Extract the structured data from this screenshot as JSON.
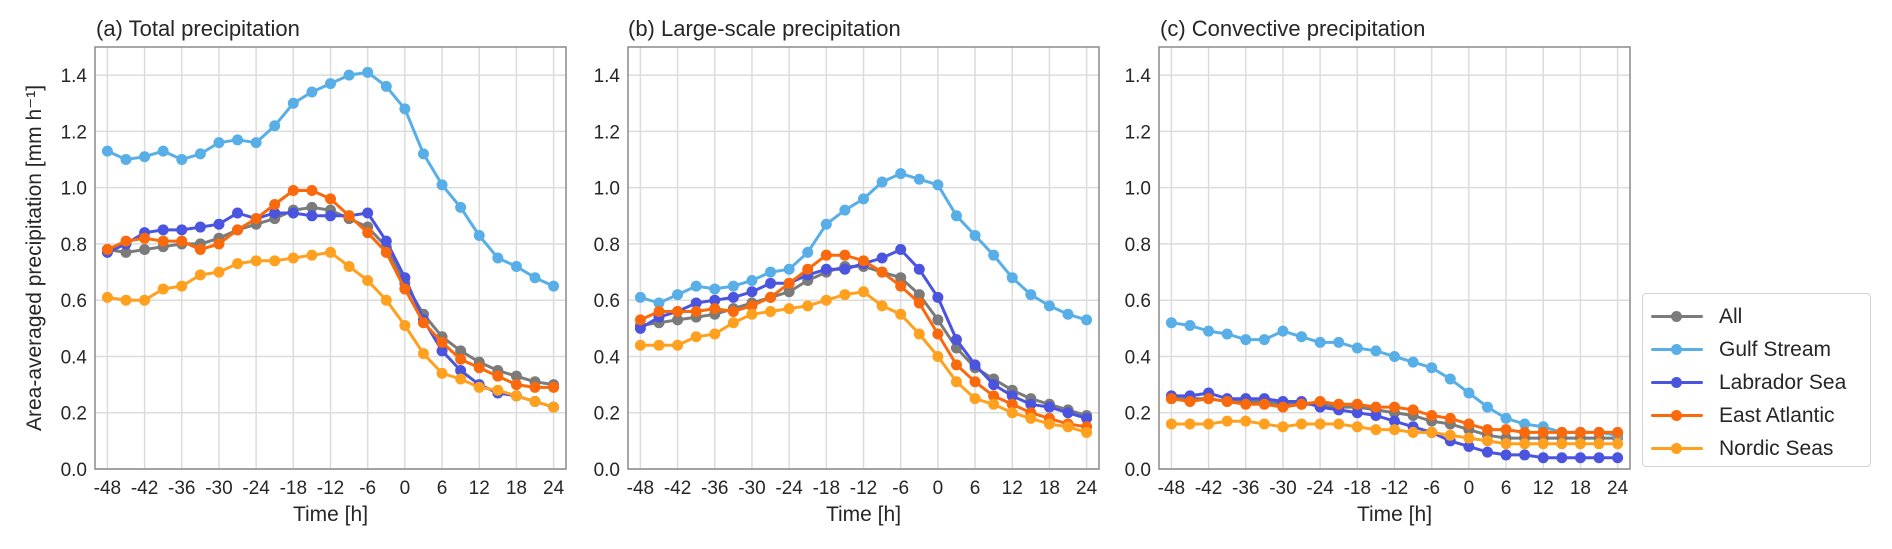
{
  "chart_data": [
    {
      "type": "line",
      "title": "(a) Total precipitation",
      "xlabel": "Time [h]",
      "ylabel": "Area-averaged precipitation [mm h⁻¹]",
      "xlim": [
        -50,
        26
      ],
      "ylim": [
        0,
        1.5
      ],
      "xticks": [
        -48,
        -42,
        -36,
        -30,
        -24,
        -18,
        -12,
        -6,
        0,
        6,
        12,
        18,
        24
      ],
      "xtick_labels": [
        "-48",
        "-42",
        "-36",
        "-30",
        "-24",
        "-18",
        "-12",
        "-6",
        "0",
        "6",
        "12",
        "18",
        "24"
      ],
      "yticks": [
        0.0,
        0.2,
        0.4,
        0.6,
        0.8,
        1.0,
        1.2,
        1.4
      ],
      "ytick_labels": [
        "0.0",
        "0.2",
        "0.4",
        "0.6",
        "0.8",
        "1.0",
        "1.2",
        "1.4"
      ],
      "grid": true,
      "x": [
        -48,
        -45,
        -42,
        -39,
        -36,
        -33,
        -30,
        -27,
        -24,
        -21,
        -18,
        -15,
        -12,
        -9,
        -6,
        -3,
        0,
        3,
        6,
        9,
        12,
        15,
        18,
        21,
        24
      ],
      "series": [
        {
          "name": "All",
          "values": [
            0.78,
            0.77,
            0.78,
            0.79,
            0.8,
            0.8,
            0.82,
            0.85,
            0.87,
            0.89,
            0.92,
            0.93,
            0.92,
            0.89,
            0.86,
            0.79,
            0.66,
            0.55,
            0.47,
            0.42,
            0.38,
            0.35,
            0.33,
            0.31,
            0.3
          ]
        },
        {
          "name": "Gulf Stream",
          "values": [
            1.13,
            1.1,
            1.11,
            1.13,
            1.1,
            1.12,
            1.16,
            1.17,
            1.16,
            1.22,
            1.3,
            1.34,
            1.37,
            1.4,
            1.41,
            1.36,
            1.28,
            1.12,
            1.01,
            0.93,
            0.83,
            0.75,
            0.72,
            0.68,
            0.65
          ]
        },
        {
          "name": "Labrador Sea",
          "values": [
            0.77,
            0.8,
            0.84,
            0.85,
            0.85,
            0.86,
            0.87,
            0.91,
            0.89,
            0.91,
            0.91,
            0.9,
            0.9,
            0.9,
            0.91,
            0.81,
            0.68,
            0.53,
            0.42,
            0.35,
            0.3,
            0.27,
            0.26,
            0.24,
            0.22
          ]
        },
        {
          "name": "East Atlantic",
          "values": [
            0.78,
            0.81,
            0.82,
            0.81,
            0.81,
            0.78,
            0.8,
            0.85,
            0.89,
            0.94,
            0.99,
            0.99,
            0.96,
            0.9,
            0.84,
            0.77,
            0.64,
            0.52,
            0.45,
            0.39,
            0.36,
            0.33,
            0.3,
            0.29,
            0.29
          ]
        },
        {
          "name": "Nordic Seas",
          "values": [
            0.61,
            0.6,
            0.6,
            0.64,
            0.65,
            0.69,
            0.7,
            0.73,
            0.74,
            0.74,
            0.75,
            0.76,
            0.77,
            0.72,
            0.67,
            0.6,
            0.51,
            0.41,
            0.34,
            0.32,
            0.29,
            0.28,
            0.26,
            0.24,
            0.22
          ]
        }
      ]
    },
    {
      "type": "line",
      "title": "(b) Large-scale precipitation",
      "xlabel": "Time [h]",
      "ylabel": "",
      "xlim": [
        -50,
        26
      ],
      "ylim": [
        0,
        1.5
      ],
      "xticks": [
        -48,
        -42,
        -36,
        -30,
        -24,
        -18,
        -12,
        -6,
        0,
        6,
        12,
        18,
        24
      ],
      "xtick_labels": [
        "-48",
        "-42",
        "-36",
        "-30",
        "-24",
        "-18",
        "-12",
        "-6",
        "0",
        "6",
        "12",
        "18",
        "24"
      ],
      "yticks": [
        0.0,
        0.2,
        0.4,
        0.6,
        0.8,
        1.0,
        1.2,
        1.4
      ],
      "ytick_labels": [
        "0.0",
        "0.2",
        "0.4",
        "0.6",
        "0.8",
        "1.0",
        "1.2",
        "1.4"
      ],
      "grid": true,
      "x": [
        -48,
        -45,
        -42,
        -39,
        -36,
        -33,
        -30,
        -27,
        -24,
        -21,
        -18,
        -15,
        -12,
        -9,
        -6,
        -3,
        0,
        3,
        6,
        9,
        12,
        15,
        18,
        21,
        24
      ],
      "series": [
        {
          "name": "All",
          "values": [
            0.51,
            0.52,
            0.53,
            0.54,
            0.55,
            0.57,
            0.59,
            0.61,
            0.63,
            0.67,
            0.7,
            0.72,
            0.72,
            0.7,
            0.68,
            0.62,
            0.53,
            0.43,
            0.36,
            0.32,
            0.28,
            0.25,
            0.23,
            0.21,
            0.19
          ]
        },
        {
          "name": "Gulf Stream",
          "values": [
            0.61,
            0.59,
            0.62,
            0.65,
            0.64,
            0.65,
            0.67,
            0.7,
            0.71,
            0.77,
            0.87,
            0.92,
            0.96,
            1.02,
            1.05,
            1.03,
            1.01,
            0.9,
            0.83,
            0.76,
            0.68,
            0.62,
            0.58,
            0.55,
            0.53
          ]
        },
        {
          "name": "Labrador Sea",
          "values": [
            0.5,
            0.54,
            0.56,
            0.59,
            0.6,
            0.61,
            0.63,
            0.66,
            0.66,
            0.69,
            0.71,
            0.71,
            0.73,
            0.75,
            0.78,
            0.71,
            0.61,
            0.46,
            0.37,
            0.3,
            0.26,
            0.23,
            0.22,
            0.2,
            0.18
          ]
        },
        {
          "name": "East Atlantic",
          "values": [
            0.53,
            0.56,
            0.56,
            0.56,
            0.57,
            0.56,
            0.58,
            0.61,
            0.66,
            0.71,
            0.76,
            0.76,
            0.74,
            0.7,
            0.65,
            0.59,
            0.48,
            0.37,
            0.31,
            0.26,
            0.23,
            0.2,
            0.18,
            0.16,
            0.15
          ]
        },
        {
          "name": "Nordic Seas",
          "values": [
            0.44,
            0.44,
            0.44,
            0.47,
            0.48,
            0.52,
            0.55,
            0.56,
            0.57,
            0.58,
            0.6,
            0.62,
            0.63,
            0.58,
            0.55,
            0.48,
            0.4,
            0.31,
            0.25,
            0.23,
            0.2,
            0.18,
            0.16,
            0.15,
            0.13
          ]
        }
      ]
    },
    {
      "type": "line",
      "title": "(c) Convective precipitation",
      "xlabel": "Time [h]",
      "ylabel": "",
      "xlim": [
        -50,
        26
      ],
      "ylim": [
        0,
        1.5
      ],
      "xticks": [
        -48,
        -42,
        -36,
        -30,
        -24,
        -18,
        -12,
        -6,
        0,
        6,
        12,
        18,
        24
      ],
      "xtick_labels": [
        "-48",
        "-42",
        "-36",
        "-30",
        "-24",
        "-18",
        "-12",
        "-6",
        "0",
        "6",
        "12",
        "18",
        "24"
      ],
      "yticks": [
        0.0,
        0.2,
        0.4,
        0.6,
        0.8,
        1.0,
        1.2,
        1.4
      ],
      "ytick_labels": [
        "0.0",
        "0.2",
        "0.4",
        "0.6",
        "0.8",
        "1.0",
        "1.2",
        "1.4"
      ],
      "grid": true,
      "x": [
        -48,
        -45,
        -42,
        -39,
        -36,
        -33,
        -30,
        -27,
        -24,
        -21,
        -18,
        -15,
        -12,
        -9,
        -6,
        -3,
        0,
        3,
        6,
        9,
        12,
        15,
        18,
        21,
        24
      ],
      "series": [
        {
          "name": "All",
          "values": [
            0.25,
            0.25,
            0.25,
            0.24,
            0.24,
            0.24,
            0.23,
            0.23,
            0.23,
            0.22,
            0.22,
            0.21,
            0.2,
            0.19,
            0.17,
            0.16,
            0.14,
            0.12,
            0.11,
            0.11,
            0.11,
            0.11,
            0.11,
            0.11,
            0.11
          ]
        },
        {
          "name": "Gulf Stream",
          "values": [
            0.52,
            0.51,
            0.49,
            0.48,
            0.46,
            0.46,
            0.49,
            0.47,
            0.45,
            0.45,
            0.43,
            0.42,
            0.4,
            0.38,
            0.36,
            0.32,
            0.27,
            0.22,
            0.18,
            0.16,
            0.15,
            0.13,
            0.13,
            0.13,
            0.12
          ]
        },
        {
          "name": "Labrador Sea",
          "values": [
            0.26,
            0.26,
            0.27,
            0.25,
            0.25,
            0.25,
            0.24,
            0.24,
            0.22,
            0.21,
            0.2,
            0.19,
            0.17,
            0.15,
            0.13,
            0.1,
            0.08,
            0.06,
            0.05,
            0.05,
            0.04,
            0.04,
            0.04,
            0.04,
            0.04
          ]
        },
        {
          "name": "East Atlantic",
          "values": [
            0.25,
            0.24,
            0.25,
            0.24,
            0.23,
            0.23,
            0.22,
            0.23,
            0.24,
            0.23,
            0.23,
            0.22,
            0.22,
            0.21,
            0.19,
            0.18,
            0.16,
            0.14,
            0.14,
            0.13,
            0.13,
            0.13,
            0.13,
            0.13,
            0.13
          ]
        },
        {
          "name": "Nordic Seas",
          "values": [
            0.16,
            0.16,
            0.16,
            0.17,
            0.17,
            0.16,
            0.15,
            0.16,
            0.16,
            0.16,
            0.15,
            0.14,
            0.14,
            0.13,
            0.13,
            0.12,
            0.11,
            0.1,
            0.09,
            0.09,
            0.09,
            0.09,
            0.09,
            0.09,
            0.09
          ]
        }
      ]
    }
  ],
  "legend": {
    "placement": "right-outside",
    "items": [
      {
        "label": "All",
        "color": "#7b7b7b"
      },
      {
        "label": "Gulf Stream",
        "color": "#58aee6"
      },
      {
        "label": "Labrador Sea",
        "color": "#4b54df"
      },
      {
        "label": "East Atlantic",
        "color": "#fa690b"
      },
      {
        "label": "Nordic Seas",
        "color": "#ffa01f"
      }
    ]
  },
  "colors": {
    "grid": "#dcdcdc",
    "frame": "#8a8a8a",
    "text": "#262626"
  }
}
